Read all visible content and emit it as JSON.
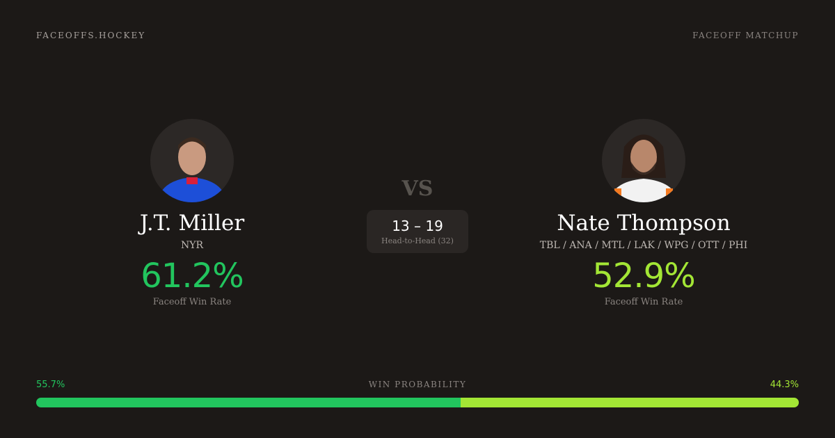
{
  "header": {
    "brand": "FACEOFFS.HOCKEY",
    "tag": "FACEOFF MATCHUP"
  },
  "player1": {
    "name": "J.T. Miller",
    "team": "NYR",
    "win_rate": "61.2%",
    "win_rate_label": "Faceoff Win Rate",
    "color": "#22c55e",
    "jersey": "#1d4fd8"
  },
  "player2": {
    "name": "Nate Thompson",
    "team": "TBL / ANA / MTL / LAK / WPG / OTT / PHI",
    "win_rate": "52.9%",
    "win_rate_label": "Faceoff Win Rate",
    "color": "#a3e635",
    "jersey": "#f2f2f2"
  },
  "vs": "VS",
  "head_to_head": {
    "score": "13 – 19",
    "label": "Head-to-Head (32)"
  },
  "probability": {
    "label": "WIN PROBABILITY",
    "left": "55.7%",
    "right": "44.3%",
    "left_value": 55.7,
    "right_value": 44.3
  }
}
